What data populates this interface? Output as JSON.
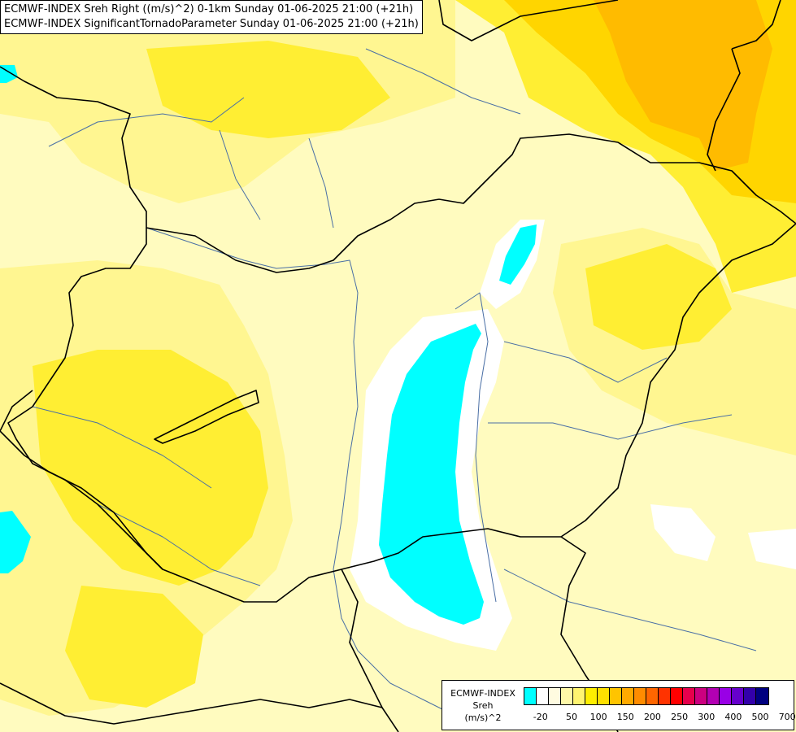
{
  "title": {
    "line1": "ECMWF-INDEX Sreh Right ((m/s)^2) 0-1km Sunday 01-06-2025 21:00 (+21h)",
    "line2": "ECMWF-INDEX SignificantTornadoParameter Sunday 01-06-2025 21:00 (+21h)"
  },
  "legend": {
    "source": "ECMWF-INDEX",
    "variable": "Sreh",
    "unit": "(m/s)^2",
    "colors": [
      "#00ffff",
      "#ffffff",
      "#fffbe0",
      "#fff8a8",
      "#fff470",
      "#ffee00",
      "#ffe000",
      "#ffc400",
      "#ffaa00",
      "#ff8c00",
      "#ff6600",
      "#ff3300",
      "#ff0000",
      "#e6004c",
      "#cc0080",
      "#b300b3",
      "#9900e6",
      "#6600cc",
      "#3300aa",
      "#000080"
    ],
    "ticks": [
      "-20",
      "50",
      "100",
      "150",
      "200",
      "250",
      "300",
      "400",
      "500",
      "700"
    ]
  },
  "palette": {
    "pale": "#fffbbf",
    "light": "#fff691",
    "yellow": "#ffee33",
    "gold": "#ffd500",
    "orange": "#ffbb00",
    "white": "#ffffff",
    "cyan": "#00ffff",
    "river": "#4a6fa5",
    "border": "#000000"
  }
}
